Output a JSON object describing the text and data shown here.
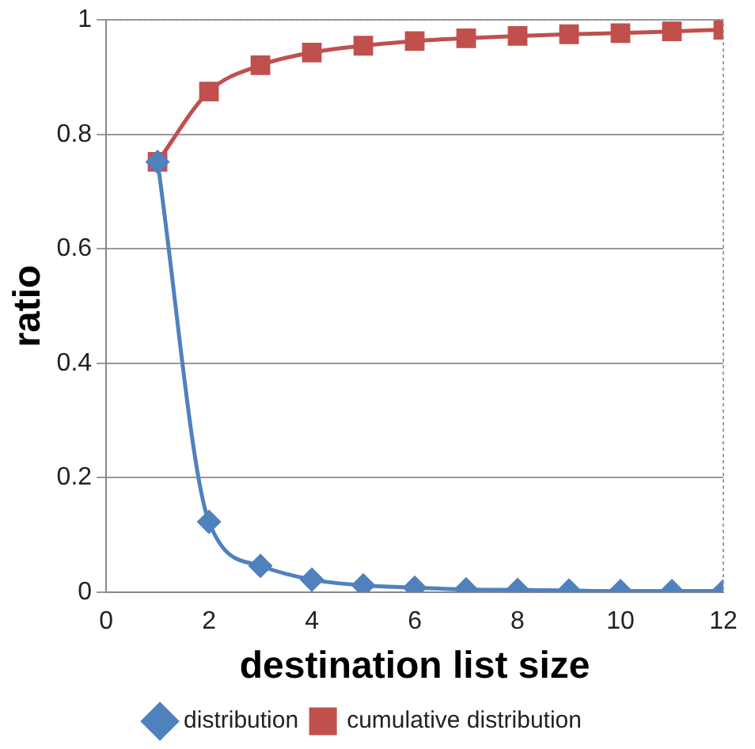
{
  "chart_data": {
    "type": "line",
    "xlabel": "destination list size",
    "ylabel": "ratio",
    "x": [
      1,
      2,
      3,
      4,
      5,
      6,
      7,
      8,
      9,
      10,
      11,
      12
    ],
    "xlim": [
      0,
      12
    ],
    "xticks": [
      0,
      2,
      4,
      6,
      8,
      10,
      12
    ],
    "ylim": [
      0,
      1
    ],
    "yticks": [
      0,
      0.2,
      0.4,
      0.6,
      0.8,
      1
    ],
    "grid": "y",
    "legend": "bottom",
    "series": [
      {
        "name": "distribution",
        "color": "#4f81bd",
        "marker": "diamond",
        "values": [
          0.752,
          0.123,
          0.046,
          0.022,
          0.012,
          0.008,
          0.005,
          0.004,
          0.003,
          0.002,
          0.002,
          0.002
        ]
      },
      {
        "name": "cumulative distribution",
        "color": "#c0504d",
        "marker": "square",
        "values": [
          0.752,
          0.875,
          0.921,
          0.943,
          0.955,
          0.963,
          0.968,
          0.972,
          0.975,
          0.977,
          0.98,
          0.983
        ]
      }
    ]
  }
}
